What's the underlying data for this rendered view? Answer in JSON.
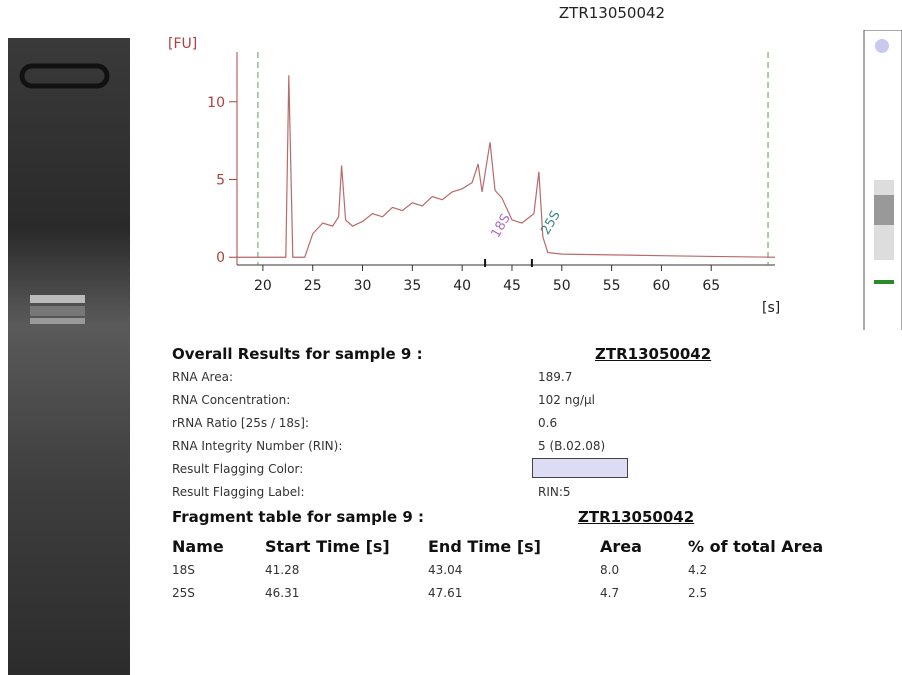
{
  "chart_data": {
    "type": "line",
    "title": "ZTR13050042",
    "y_label": "[FU]",
    "x_label": "[s]",
    "xlim": [
      17.4,
      71.4
    ],
    "ylim": [
      -0.5,
      13.2
    ],
    "xticks": [
      20,
      25,
      30,
      35,
      40,
      45,
      50,
      55,
      60,
      65
    ],
    "yticks": [
      0,
      5,
      10
    ],
    "dashed_markers": [
      19.5,
      70.7
    ],
    "peak_markers": [
      42.3,
      47.0
    ],
    "series": [
      {
        "color": "#b86a6a",
        "x": [
          17.4,
          22.3,
          22.6,
          23.0,
          24.2,
          25,
          26,
          27,
          27.6,
          27.9,
          28.3,
          29,
          30,
          31,
          32,
          33,
          34,
          35,
          36,
          37,
          38,
          39,
          40,
          41,
          41.6,
          42.0,
          42.8,
          43.3,
          44,
          45,
          46,
          47.2,
          47.7,
          48.1,
          48.6,
          50,
          55,
          60,
          65,
          71.4
        ],
        "values": [
          0,
          0,
          11.7,
          0,
          0,
          1.5,
          2.2,
          2.0,
          2.6,
          5.9,
          2.4,
          2.0,
          2.3,
          2.8,
          2.6,
          3.2,
          3.0,
          3.5,
          3.3,
          3.9,
          3.7,
          4.2,
          4.4,
          4.8,
          6.0,
          4.2,
          7.4,
          4.3,
          3.8,
          2.4,
          2.2,
          2.8,
          5.5,
          1.3,
          0.3,
          0.2,
          0.15,
          0.1,
          0.05,
          0
        ]
      }
    ],
    "annotations": [
      {
        "text": "18S",
        "x": 43.6,
        "y": 1.2,
        "color": "#b070c0"
      },
      {
        "text": "25S",
        "x": 48.6,
        "y": 1.4,
        "color": "#3a8a8a"
      }
    ]
  },
  "results": {
    "title": "Overall Results for sample 9 :",
    "sample": "ZTR13050042",
    "rows": [
      [
        "RNA Area:",
        "189.7"
      ],
      [
        "RNA Concentration:",
        "102 ng/µl"
      ],
      [
        "rRNA Ratio [25s / 18s]:",
        "0.6"
      ],
      [
        "RNA Integrity Number (RIN):",
        "5   (B.02.08)"
      ],
      [
        "Result Flagging Color:",
        ""
      ],
      [
        "Result Flagging Label:",
        "RIN:5"
      ]
    ],
    "flag_color": "#dcdcf4"
  },
  "fragments": {
    "title": "Fragment table for sample 9 :",
    "sample": "ZTR13050042",
    "headers": [
      "Name",
      "Start Time [s]",
      "End Time [s]",
      "Area",
      "% of total Area"
    ],
    "rows": [
      [
        "18S",
        "41.28",
        "43.04",
        "8.0",
        "4.2"
      ],
      [
        "25S",
        "46.31",
        "47.61",
        "4.7",
        "2.5"
      ]
    ]
  }
}
